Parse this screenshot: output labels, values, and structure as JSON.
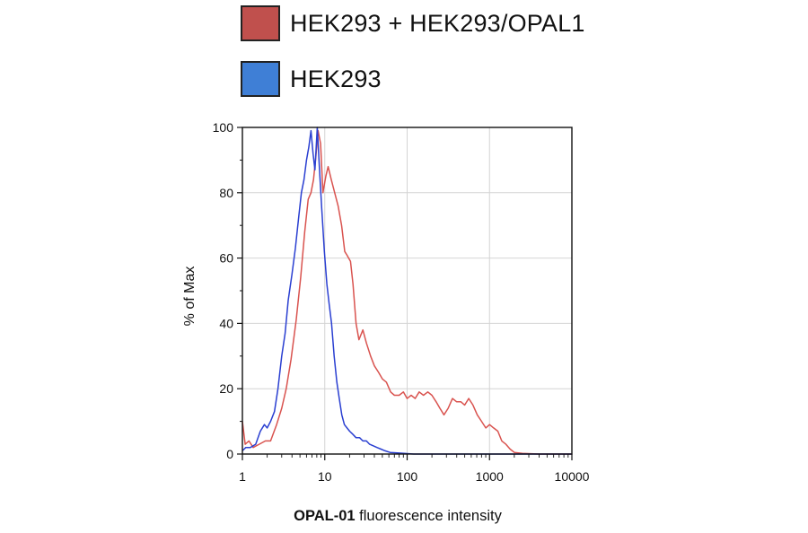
{
  "chart_data": {
    "type": "line",
    "title": "",
    "xlabel_bold": "OPAL-01",
    "xlabel_rest": " fluorescence intensity",
    "ylabel": "% of Max",
    "xscale": "log",
    "xlim": [
      1,
      10000
    ],
    "ylim": [
      0,
      100
    ],
    "xticks": [
      1,
      10,
      100,
      1000,
      10000
    ],
    "xtick_labels": [
      "1",
      "10",
      "100",
      "1000",
      "10000"
    ],
    "yticks": [
      0,
      20,
      40,
      60,
      80,
      100
    ],
    "ytick_labels": [
      "0",
      "20",
      "40",
      "60",
      "80",
      "100"
    ],
    "grid": true,
    "legend_position": "top",
    "series": [
      {
        "name": "HEK293 + HEK293/OPAL1",
        "color": "#d9534f",
        "swatch_color": "#c0504d",
        "points": [
          [
            1.0,
            10
          ],
          [
            1.08,
            3
          ],
          [
            1.2,
            4
          ],
          [
            1.35,
            2
          ],
          [
            1.6,
            3
          ],
          [
            1.9,
            4
          ],
          [
            2.2,
            4
          ],
          [
            2.6,
            9
          ],
          [
            3.0,
            14
          ],
          [
            3.4,
            20
          ],
          [
            3.9,
            29
          ],
          [
            4.5,
            41
          ],
          [
            5.1,
            54
          ],
          [
            5.7,
            68
          ],
          [
            6.3,
            78
          ],
          [
            6.8,
            80
          ],
          [
            7.3,
            84
          ],
          [
            7.8,
            91
          ],
          [
            8.3,
            99
          ],
          [
            8.9,
            95
          ],
          [
            9.5,
            80
          ],
          [
            10.3,
            85
          ],
          [
            11.0,
            88
          ],
          [
            12.0,
            84
          ],
          [
            13.2,
            80
          ],
          [
            14.5,
            76
          ],
          [
            16.0,
            70
          ],
          [
            17.5,
            62
          ],
          [
            18.5,
            61
          ],
          [
            20.5,
            59
          ],
          [
            22.0,
            52
          ],
          [
            24.0,
            40
          ],
          [
            26.0,
            35
          ],
          [
            29.0,
            38
          ],
          [
            32.0,
            34
          ],
          [
            36.0,
            30
          ],
          [
            40.0,
            27
          ],
          [
            45.0,
            25
          ],
          [
            50.0,
            23
          ],
          [
            56.0,
            22
          ],
          [
            63.0,
            19
          ],
          [
            70.0,
            18
          ],
          [
            80.0,
            18
          ],
          [
            90.0,
            19
          ],
          [
            100.0,
            17
          ],
          [
            112.0,
            18
          ],
          [
            125.0,
            17
          ],
          [
            140.0,
            19
          ],
          [
            158.0,
            18
          ],
          [
            178.0,
            19
          ],
          [
            200.0,
            18
          ],
          [
            225.0,
            16
          ],
          [
            250.0,
            14
          ],
          [
            280.0,
            12
          ],
          [
            315.0,
            14
          ],
          [
            355.0,
            17
          ],
          [
            400.0,
            16
          ],
          [
            450.0,
            16
          ],
          [
            500.0,
            15
          ],
          [
            560.0,
            17
          ],
          [
            630.0,
            15
          ],
          [
            710.0,
            12
          ],
          [
            800.0,
            10
          ],
          [
            900.0,
            8
          ],
          [
            1000.0,
            9
          ],
          [
            1120.0,
            8
          ],
          [
            1260.0,
            7
          ],
          [
            1410.0,
            4
          ],
          [
            1580.0,
            3
          ],
          [
            1780.0,
            1.5
          ],
          [
            2000.0,
            0.5
          ],
          [
            2500.0,
            0.2
          ],
          [
            4000.0,
            0
          ],
          [
            10000.0,
            0
          ]
        ]
      },
      {
        "name": "HEK293",
        "color": "#2a3fd1",
        "swatch_color": "#3f7fd6",
        "points": [
          [
            1.0,
            1
          ],
          [
            1.1,
            2
          ],
          [
            1.25,
            2
          ],
          [
            1.45,
            3
          ],
          [
            1.65,
            7
          ],
          [
            1.85,
            9
          ],
          [
            2.0,
            8
          ],
          [
            2.2,
            10
          ],
          [
            2.45,
            13
          ],
          [
            2.7,
            20
          ],
          [
            3.0,
            30
          ],
          [
            3.3,
            37
          ],
          [
            3.6,
            47
          ],
          [
            4.0,
            55
          ],
          [
            4.4,
            63
          ],
          [
            4.8,
            72
          ],
          [
            5.2,
            80
          ],
          [
            5.6,
            84
          ],
          [
            6.0,
            90
          ],
          [
            6.4,
            94
          ],
          [
            6.8,
            99
          ],
          [
            7.2,
            92
          ],
          [
            7.6,
            87
          ],
          [
            8.1,
            100
          ],
          [
            8.6,
            88
          ],
          [
            9.2,
            75
          ],
          [
            9.9,
            62
          ],
          [
            10.6,
            52
          ],
          [
            11.3,
            46
          ],
          [
            12.1,
            40
          ],
          [
            13.0,
            30
          ],
          [
            14.0,
            22
          ],
          [
            15.0,
            17
          ],
          [
            16.1,
            12
          ],
          [
            17.3,
            9
          ],
          [
            18.6,
            8
          ],
          [
            20.0,
            7
          ],
          [
            22.0,
            6
          ],
          [
            24.0,
            5
          ],
          [
            26.5,
            5
          ],
          [
            29.0,
            4
          ],
          [
            32.0,
            4
          ],
          [
            35.0,
            3
          ],
          [
            39.0,
            2.5
          ],
          [
            43.0,
            2
          ],
          [
            48.0,
            1.5
          ],
          [
            54.0,
            1
          ],
          [
            62.0,
            0.5
          ],
          [
            80.0,
            0.3
          ],
          [
            120.0,
            0
          ],
          [
            10000.0,
            0
          ]
        ]
      }
    ]
  }
}
